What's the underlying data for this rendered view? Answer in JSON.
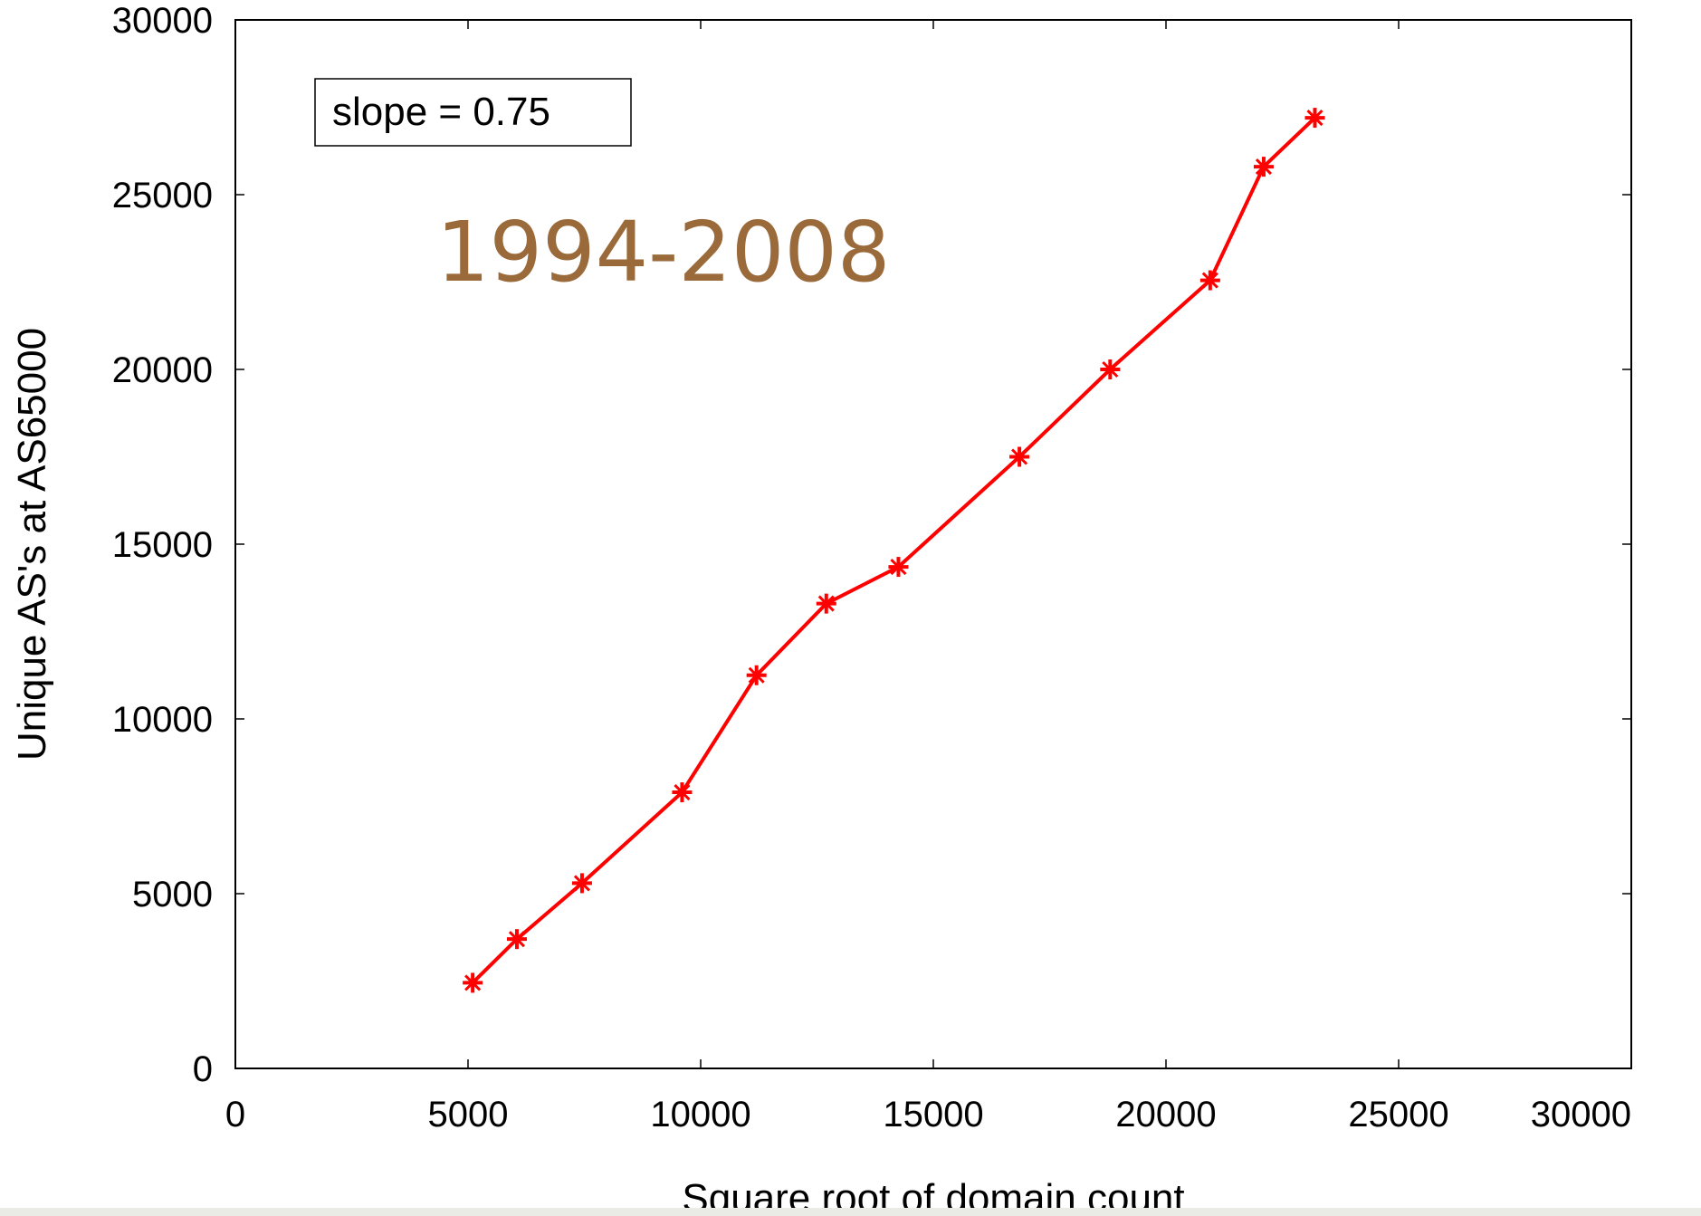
{
  "chart_data": {
    "type": "line",
    "title": "",
    "xlabel": "Square root of domain count",
    "ylabel": "Unique AS's at AS65000",
    "xlim": [
      0,
      30000
    ],
    "ylim": [
      0,
      30000
    ],
    "xticks": [
      "0",
      "5000",
      "10000",
      "15000",
      "20000",
      "25000",
      "30000"
    ],
    "yticks": [
      "0",
      "5000",
      "10000",
      "15000",
      "20000",
      "25000",
      "30000"
    ],
    "grid": false,
    "legend_text": "slope = 0.75",
    "annotation": "1994-2008",
    "annotation_color": "#9a6a3a",
    "series": [
      {
        "color": "#ff0000",
        "marker": "star",
        "x": [
          5100,
          6050,
          7450,
          9600,
          11200,
          12700,
          14250,
          16850,
          18800,
          20950,
          22100,
          23200
        ],
        "y": [
          2450,
          3700,
          5300,
          7900,
          11250,
          13300,
          14350,
          17500,
          20000,
          22550,
          25800,
          27200
        ]
      }
    ]
  }
}
